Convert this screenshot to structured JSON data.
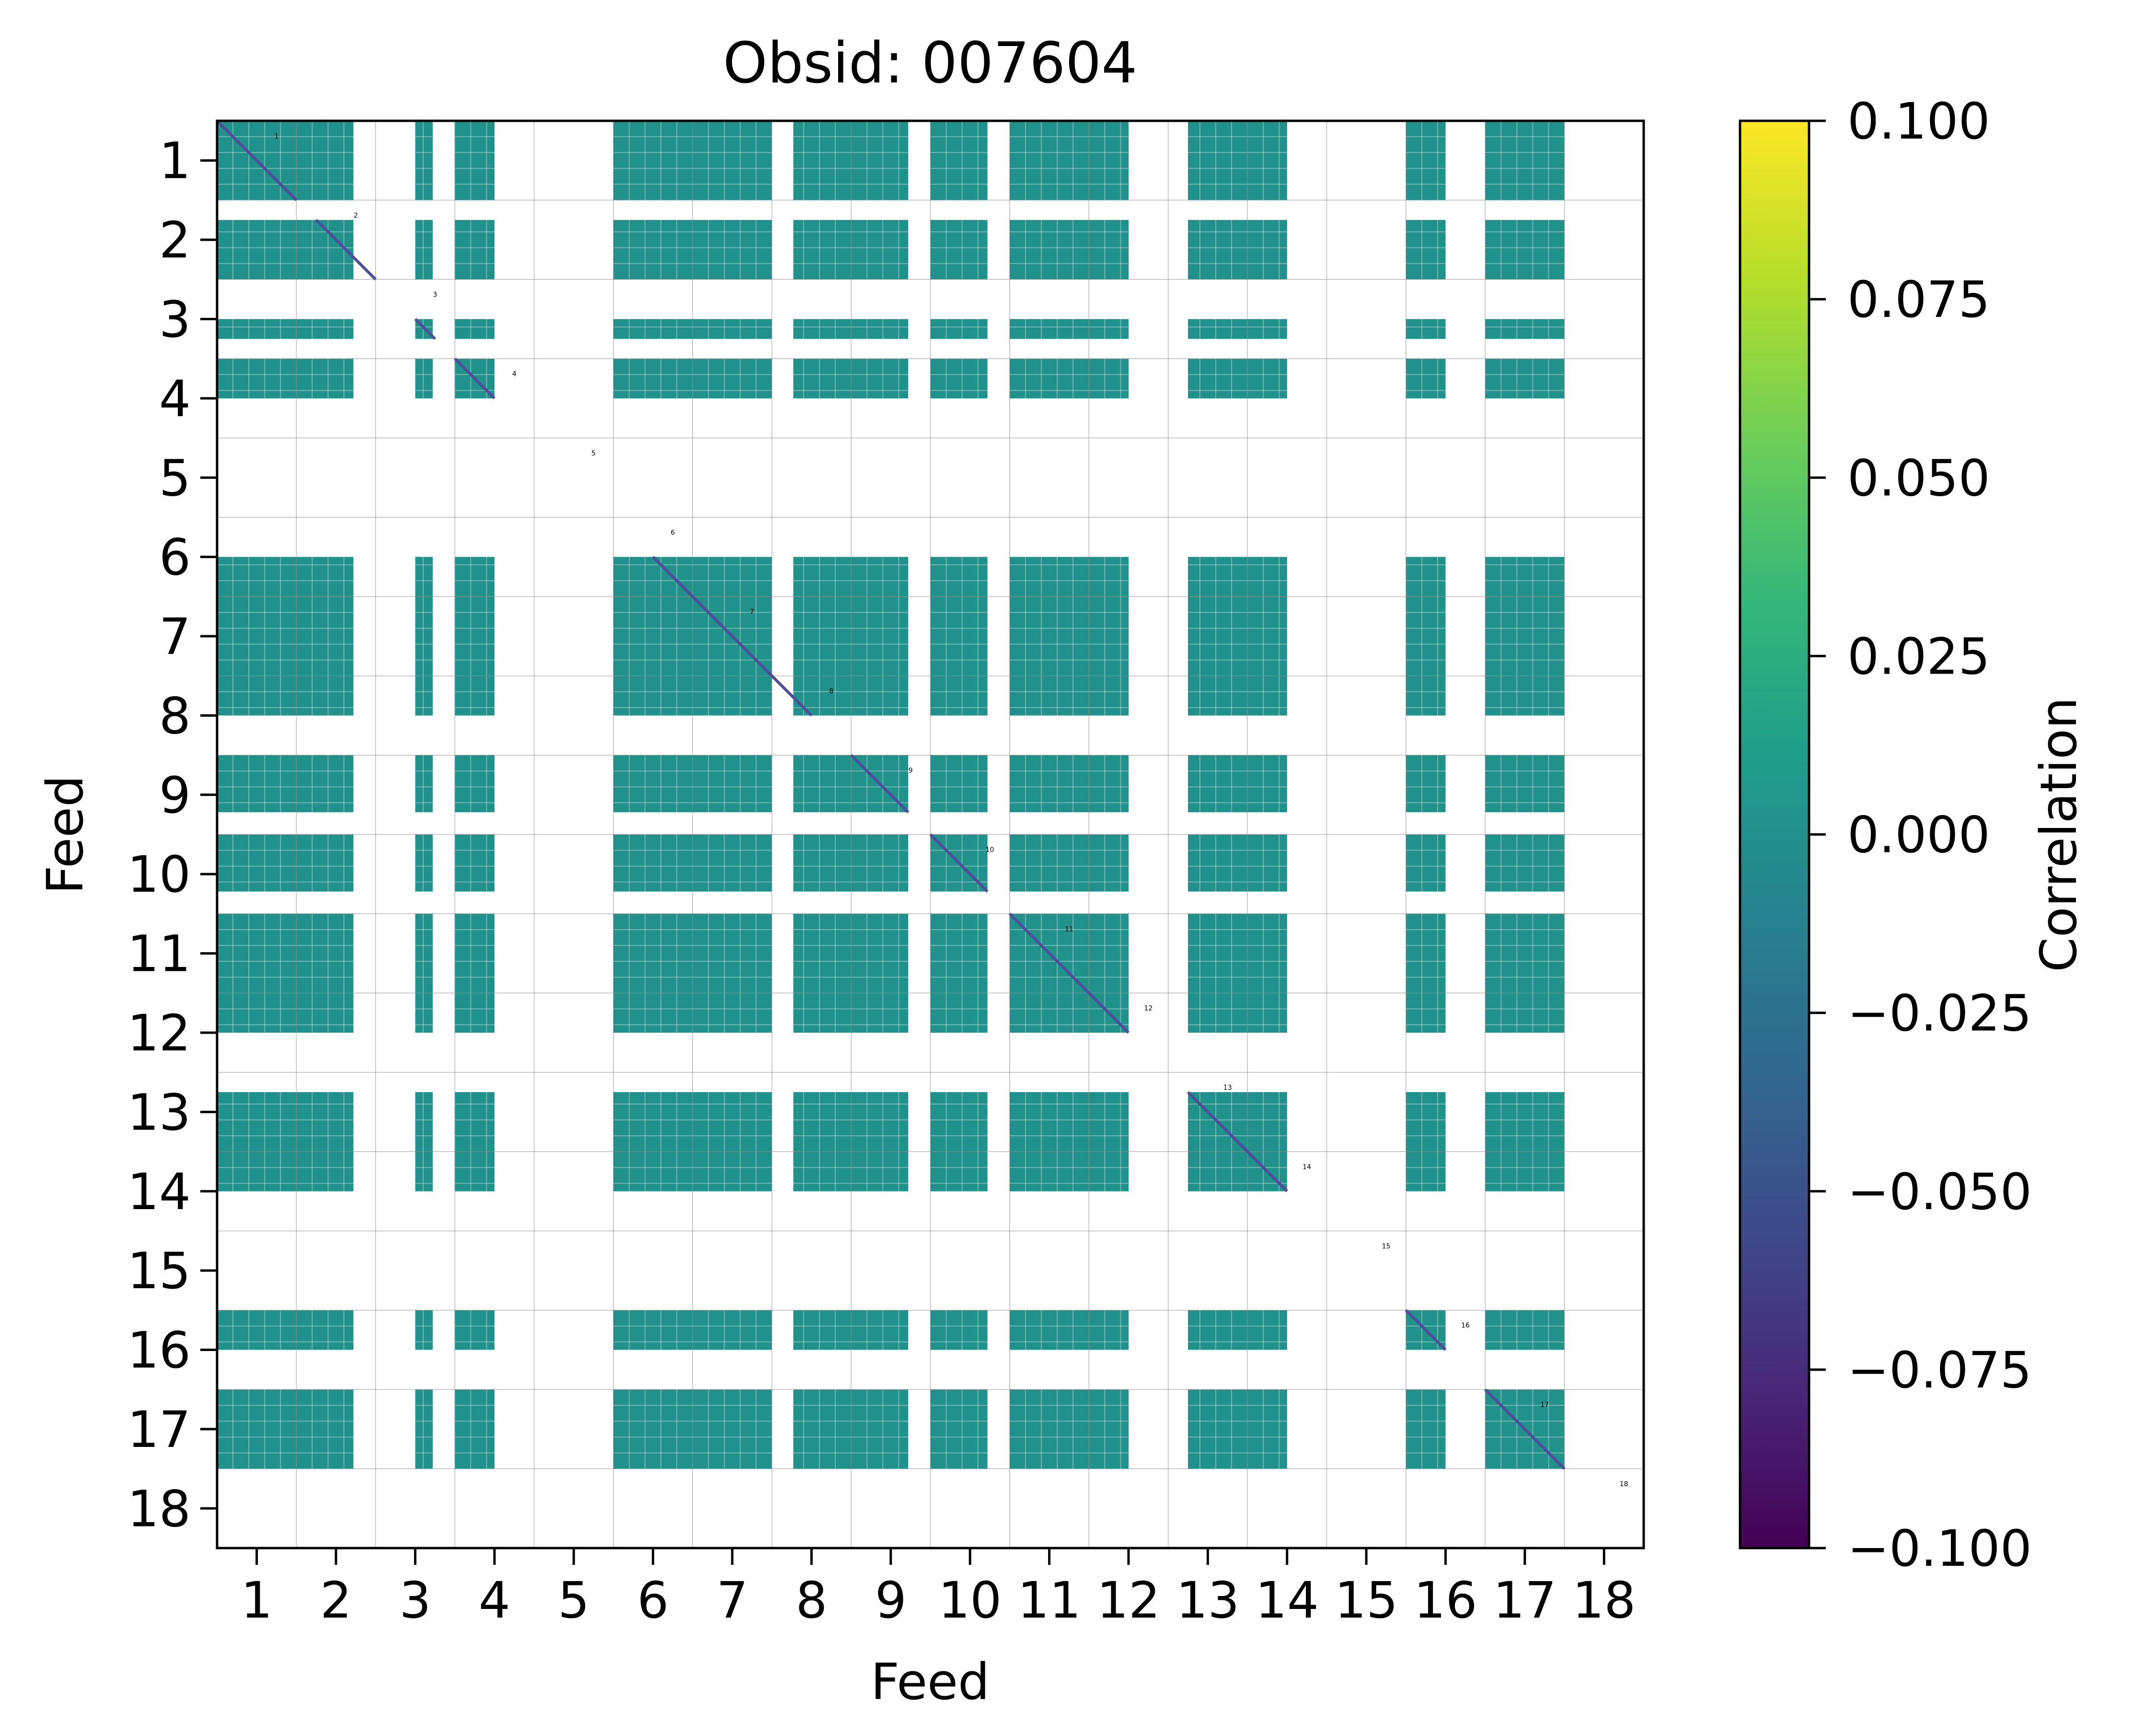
{
  "chart_data": {
    "type": "heatmap",
    "title": "Obsid: 007604",
    "xlabel": "Feed",
    "ylabel": "Feed",
    "feeds": [
      "1",
      "2",
      "3",
      "4",
      "5",
      "6",
      "7",
      "8",
      "9",
      "10",
      "11",
      "12",
      "13",
      "14",
      "15",
      "16",
      "17",
      "18"
    ],
    "feed_labels": [
      "1",
      "2",
      "3",
      "4",
      "5",
      "6",
      "7",
      "8",
      "9",
      "10",
      "11",
      "12",
      "13",
      "14",
      "15",
      "16",
      "17",
      "18"
    ],
    "x_tick_labels": [
      "1",
      "2",
      "3",
      "4",
      "5",
      "6",
      "7",
      "8",
      "9",
      "10",
      "11",
      "12",
      "13",
      "14",
      "15",
      "16",
      "17",
      "18"
    ],
    "y_tick_labels": [
      "1",
      "2",
      "3",
      "4",
      "5",
      "6",
      "7",
      "8",
      "9",
      "10",
      "11",
      "12",
      "13",
      "14",
      "15",
      "16",
      "17",
      "18"
    ],
    "colorbar": {
      "label": "Correlation",
      "vmin": -0.1,
      "vmax": 0.1,
      "ticks": [
        "0.100",
        "0.075",
        "0.050",
        "0.025",
        "0.000",
        "−0.025",
        "−0.050",
        "−0.075",
        "−0.100"
      ],
      "colormap": "viridis",
      "colors": [
        "#440154",
        "#482878",
        "#3e4a89",
        "#31688e",
        "#26828e",
        "#1f9e89",
        "#35b779",
        "#6ece58",
        "#b5de2b",
        "#fde725"
      ]
    },
    "cell_value": 0.0,
    "cell_color": "#21918c",
    "diagonal_color": "#4d4d9a",
    "masked_feeds": [
      "5",
      "15",
      "18"
    ],
    "grid": true,
    "feed_blocks": [
      {
        "feed": "1",
        "bands": [
          [
            0.0,
            1.0
          ]
        ],
        "segments": [
          [
            0.0,
            1.0
          ]
        ]
      },
      {
        "feed": "2",
        "bands": [
          [
            0.25,
            1.0
          ]
        ],
        "segments": [
          [
            0.0,
            0.72
          ]
        ]
      },
      {
        "feed": "3",
        "bands": [
          [
            0.5,
            0.75
          ]
        ],
        "segments": [
          [
            0.5,
            0.72
          ]
        ]
      },
      {
        "feed": "4",
        "bands": [
          [
            0.0,
            0.5
          ]
        ],
        "segments": [
          [
            0.0,
            0.5
          ]
        ]
      },
      {
        "feed": "5",
        "bands": [],
        "segments": []
      },
      {
        "feed": "6",
        "bands": [
          [
            0.5,
            1.0
          ]
        ],
        "segments": [
          [
            0.0,
            1.0
          ]
        ]
      },
      {
        "feed": "7",
        "bands": [
          [
            0.0,
            1.0
          ]
        ],
        "segments": [
          [
            0.0,
            1.0
          ]
        ]
      },
      {
        "feed": "8",
        "bands": [
          [
            0.0,
            0.5
          ]
        ],
        "segments": [
          [
            0.27,
            1.0
          ]
        ]
      },
      {
        "feed": "9",
        "bands": [
          [
            0.0,
            0.72
          ]
        ],
        "segments": [
          [
            0.0,
            0.72
          ]
        ]
      },
      {
        "feed": "10",
        "bands": [
          [
            0.0,
            0.72
          ]
        ],
        "segments": [
          [
            0.0,
            0.72
          ]
        ]
      },
      {
        "feed": "11",
        "bands": [
          [
            0.0,
            1.0
          ]
        ],
        "segments": [
          [
            0.0,
            1.0
          ]
        ]
      },
      {
        "feed": "12",
        "bands": [
          [
            0.0,
            0.5
          ]
        ],
        "segments": [
          [
            0.0,
            0.5
          ]
        ]
      },
      {
        "feed": "13",
        "bands": [
          [
            0.25,
            1.0
          ]
        ],
        "segments": [
          [
            0.25,
            1.0
          ]
        ]
      },
      {
        "feed": "14",
        "bands": [
          [
            0.0,
            0.5
          ]
        ],
        "segments": [
          [
            0.0,
            0.5
          ]
        ]
      },
      {
        "feed": "15",
        "bands": [],
        "segments": []
      },
      {
        "feed": "16",
        "bands": [
          [
            0.0,
            0.5
          ]
        ],
        "segments": [
          [
            0.0,
            0.5
          ]
        ]
      },
      {
        "feed": "17",
        "bands": [
          [
            0.0,
            1.0
          ]
        ],
        "segments": [
          [
            0.0,
            1.0
          ]
        ]
      },
      {
        "feed": "18",
        "bands": [],
        "segments": []
      }
    ]
  }
}
